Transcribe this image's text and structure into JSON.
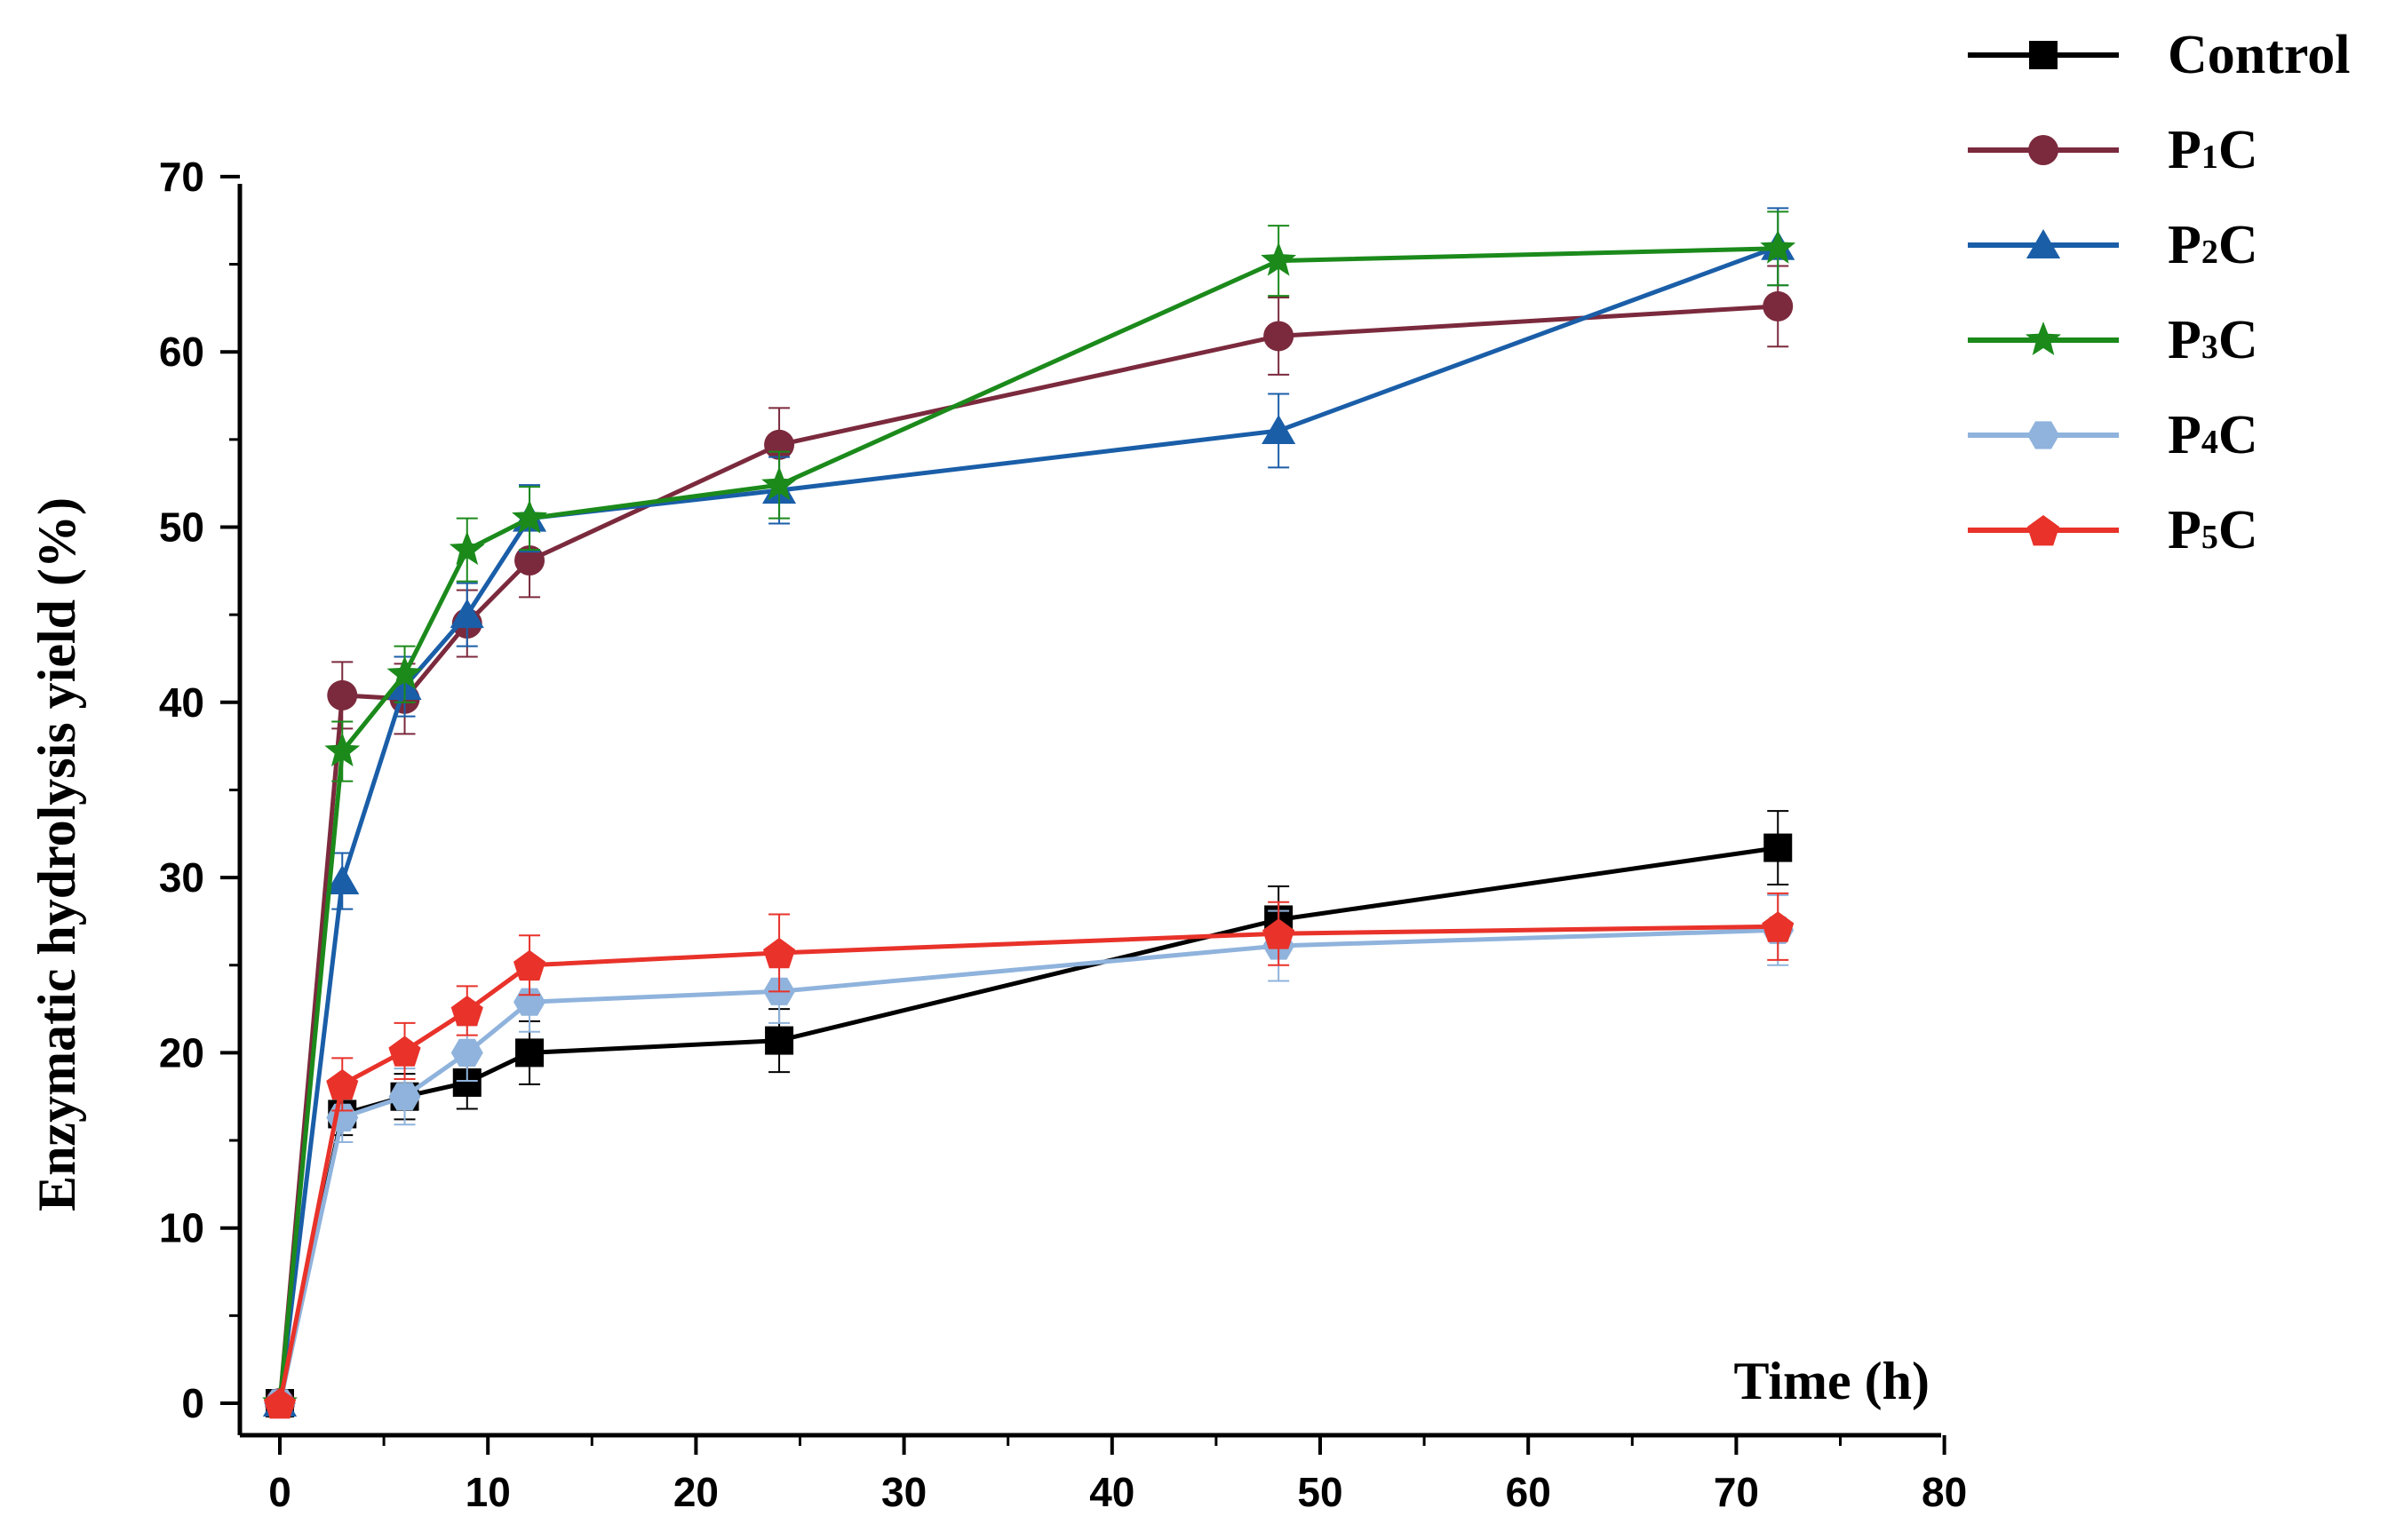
{
  "chart_data": {
    "type": "line",
    "title": "",
    "xlabel": "Time (h)",
    "ylabel": "Enzymatic hydrolysis yield (%)",
    "xlim": [
      0,
      80
    ],
    "ylim": [
      0,
      70
    ],
    "x_ticks": [
      0,
      10,
      20,
      30,
      40,
      50,
      60,
      70,
      80
    ],
    "y_ticks": [
      0,
      10,
      20,
      30,
      40,
      50,
      60,
      70
    ],
    "grid": false,
    "legend_position": "top-right, outside plot",
    "x": [
      0,
      3,
      6,
      9,
      12,
      24,
      48,
      72
    ],
    "series": [
      {
        "name": "Control",
        "legend_main": "Control",
        "legend_sub": "",
        "legend_tail": "",
        "color": "#000000",
        "marker": "square",
        "values": [
          0,
          16.5,
          17.5,
          18.3,
          20.0,
          20.7,
          27.6,
          31.7
        ],
        "errors": [
          0,
          1.2,
          1.3,
          1.5,
          1.8,
          1.8,
          1.9,
          2.1
        ]
      },
      {
        "name": "P1C",
        "legend_main": "P",
        "legend_sub": "1",
        "legend_tail": "C",
        "color": "#7b2a3d",
        "marker": "circle",
        "values": [
          0,
          40.4,
          40.2,
          44.5,
          48.1,
          54.7,
          60.9,
          62.6
        ],
        "errors": [
          0,
          1.9,
          2.0,
          1.9,
          2.1,
          2.1,
          2.2,
          2.3
        ]
      },
      {
        "name": "P2C",
        "legend_main": "P",
        "legend_sub": "2",
        "legend_tail": "C",
        "color": "#1a5ea8",
        "marker": "triangle",
        "values": [
          0,
          29.8,
          40.9,
          45.0,
          50.5,
          52.1,
          55.5,
          66.0
        ],
        "errors": [
          0,
          1.6,
          1.7,
          1.8,
          1.9,
          1.9,
          2.1,
          2.2
        ]
      },
      {
        "name": "P3C",
        "legend_main": "P",
        "legend_sub": "3",
        "legend_tail": "C",
        "color": "#1b8a1b",
        "marker": "star",
        "values": [
          0,
          37.2,
          41.6,
          48.7,
          50.5,
          52.4,
          65.2,
          65.9
        ],
        "errors": [
          0,
          1.7,
          1.6,
          1.8,
          1.8,
          1.9,
          2.0,
          2.1
        ]
      },
      {
        "name": "P4C",
        "legend_main": "P",
        "legend_sub": "4",
        "legend_tail": "C",
        "color": "#8fb3dc",
        "marker": "hexagon",
        "values": [
          0,
          16.3,
          17.5,
          20.0,
          22.9,
          23.5,
          26.1,
          27.0
        ],
        "errors": [
          0,
          1.4,
          1.6,
          1.6,
          1.7,
          1.8,
          2.0,
          2.0
        ]
      },
      {
        "name": "P5C",
        "legend_main": "P",
        "legend_sub": "5",
        "legend_tail": "C",
        "color": "#e8322a",
        "marker": "pentagon",
        "values": [
          0,
          18.2,
          20.1,
          22.4,
          25.0,
          25.7,
          26.8,
          27.2
        ],
        "errors": [
          0,
          1.5,
          1.6,
          1.4,
          1.7,
          2.2,
          1.8,
          1.9
        ]
      }
    ]
  }
}
